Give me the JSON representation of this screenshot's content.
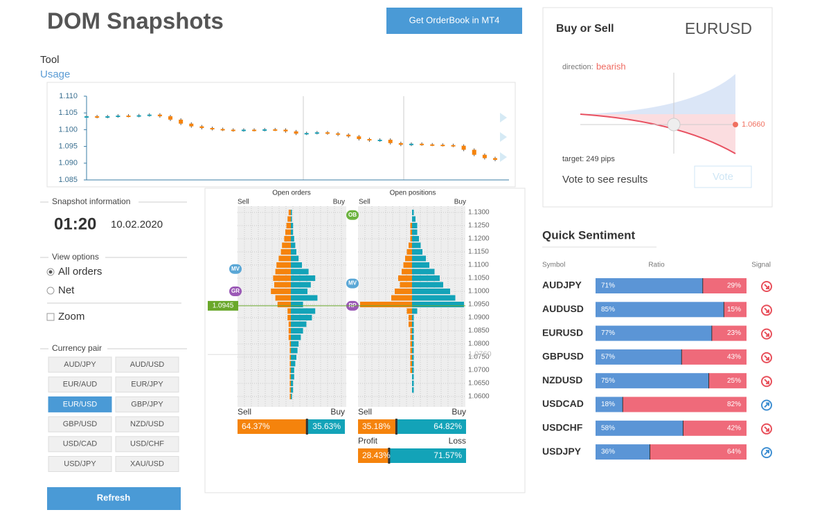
{
  "header": {
    "title": "DOM Snapshots",
    "button": "Get OrderBook in MT4"
  },
  "tool": {
    "label": "Tool",
    "link": "Usage"
  },
  "price_chart": {
    "ylim": [
      1.085,
      1.11
    ],
    "yticks": [
      {
        "value": 1.11,
        "label": "1.110"
      },
      {
        "value": 1.105,
        "label": "1.105"
      },
      {
        "value": 1.1,
        "label": "1.100"
      },
      {
        "value": 1.095,
        "label": "1.095"
      },
      {
        "value": 1.09,
        "label": "1.090"
      },
      {
        "value": 1.085,
        "label": "1.085"
      }
    ],
    "closes": [
      1.104,
      1.1038,
      1.104,
      1.1042,
      1.1041,
      1.1043,
      1.1045,
      1.104,
      1.103,
      1.1018,
      1.101,
      1.1005,
      1.1002,
      1.1,
      1.0998,
      1.1,
      1.0999,
      1.1001,
      1.1,
      1.0995,
      1.0988,
      1.099,
      1.0992,
      1.0989,
      1.0985,
      1.098,
      1.0972,
      1.0968,
      1.097,
      1.096,
      1.0955,
      1.0958,
      1.0956,
      1.0955,
      1.0954,
      1.0952,
      1.094,
      1.0925,
      1.0915,
      1.091
    ],
    "colors": {
      "up": "#1a9fb5",
      "down": "#f5830c"
    }
  },
  "snapshot": {
    "legend": "Snapshot information",
    "time": "01:20",
    "date": "10.02.2020"
  },
  "view_options": {
    "legend": "View options",
    "options": [
      "All orders",
      "Net"
    ],
    "selected": 0,
    "zoom": "Zoom",
    "zoom_checked": false
  },
  "currency_pair": {
    "legend": "Currency pair",
    "pairs": [
      "AUD/JPY",
      "AUD/USD",
      "EUR/AUD",
      "EUR/JPY",
      "EUR/USD",
      "GBP/JPY",
      "GBP/USD",
      "NZD/USD",
      "USD/CAD",
      "USD/CHF",
      "USD/JPY",
      "XAU/USD"
    ],
    "selected": 4
  },
  "refresh": "Refresh",
  "order_book": {
    "orders_title": "Open orders",
    "positions_title": "Open positions",
    "sell": "Sell",
    "buy": "Buy",
    "colors": {
      "sell": "#f5830c",
      "buy": "#13a3b8"
    },
    "levels": [
      1.13,
      1.1275,
      1.125,
      1.1225,
      1.12,
      1.1175,
      1.115,
      1.1125,
      1.11,
      1.1075,
      1.105,
      1.1025,
      1.1,
      1.0975,
      1.095,
      1.0925,
      1.09,
      1.0875,
      1.085,
      1.0825,
      1.08,
      1.0775,
      1.075,
      1.0725,
      1.07,
      1.0675,
      1.065,
      1.0625,
      1.06
    ],
    "price_ticks": [
      {
        "value": 1.13,
        "label": "1.1300"
      },
      {
        "value": 1.125,
        "label": "1.1250"
      },
      {
        "value": 1.12,
        "label": "1.1200"
      },
      {
        "value": 1.115,
        "label": "1.1150"
      },
      {
        "value": 1.11,
        "label": "1.1100"
      },
      {
        "value": 1.105,
        "label": "1.1050"
      },
      {
        "value": 1.1,
        "label": "1.1000"
      },
      {
        "value": 1.095,
        "label": "1.0950"
      },
      {
        "value": 1.09,
        "label": "1.0900"
      },
      {
        "value": 1.085,
        "label": "1.0850"
      },
      {
        "value": 1.08,
        "label": "1.0800"
      },
      {
        "value": 1.075,
        "label": "1.0750"
      },
      {
        "value": 1.07,
        "label": "1.0700"
      },
      {
        "value": 1.065,
        "label": "1.0650"
      },
      {
        "value": 1.06,
        "label": "1.0600"
      }
    ],
    "current_price": {
      "value": 1.0945,
      "label": "1.0945"
    },
    "faded_price": {
      "value": 1.076,
      "label": "1.0760"
    },
    "orders": {
      "sell": [
        0.2,
        0.3,
        0.4,
        0.5,
        0.6,
        0.8,
        0.9,
        1.1,
        1.3,
        1.4,
        1.6,
        1.5,
        1.8,
        1.4,
        1.2,
        0.3,
        0.3,
        0.2,
        0.2,
        0.2,
        0.1,
        0.1,
        0.1,
        0.1,
        0.1,
        0.1,
        0.1,
        0.1,
        0.1
      ],
      "buy": [
        0.1,
        0.1,
        0.2,
        0.2,
        0.3,
        0.4,
        0.5,
        0.7,
        1,
        1.6,
        2.2,
        1.8,
        1.5,
        2.4,
        1.1,
        2.2,
        1.9,
        1.4,
        1.1,
        0.9,
        0.7,
        0.6,
        0.5,
        0.4,
        0.3,
        0.3,
        0.2,
        0.2,
        0.1
      ]
    },
    "positions": {
      "sell": [
        0,
        0,
        0.1,
        0.1,
        0.1,
        0.2,
        0.3,
        0.4,
        0.5,
        0.6,
        0.8,
        0.7,
        1,
        1.2,
        3,
        0.3,
        0.2,
        0.2,
        0.1,
        0.1,
        0.1,
        0.1,
        0.1,
        0.1,
        0.1,
        0,
        0,
        0,
        0
      ],
      "buy": [
        0.1,
        0.2,
        0.3,
        0.3,
        0.4,
        0.5,
        0.6,
        0.8,
        1,
        1.3,
        1.6,
        1.8,
        2.2,
        2.5,
        3,
        0.3,
        0.1,
        0.1,
        0.1,
        0.1,
        0.1,
        0.1,
        0.1,
        0.1,
        0.1,
        0.1,
        0.1,
        0.1,
        0
      ]
    },
    "order_markers": [
      {
        "label": "MV",
        "price": 1.1085,
        "color": "#5aa7d6"
      },
      {
        "label": "GR",
        "price": 1.1,
        "color": "#9b59b6"
      }
    ],
    "position_markers": [
      {
        "label": "OB",
        "price": 1.129,
        "color": "#6cb33f"
      },
      {
        "label": "MV",
        "price": 1.103,
        "color": "#5aa7d6"
      },
      {
        "label": "RP",
        "price": 1.0945,
        "color": "#9b59b6"
      }
    ],
    "summary": [
      {
        "left_label": "Sell",
        "right_label": "Buy",
        "values": [
          64.37,
          35.63
        ],
        "value_labels": [
          "64.37%",
          "35.63%"
        ]
      },
      {
        "left_label": "Sell",
        "right_label": "Buy",
        "values": [
          35.18,
          64.82
        ],
        "value_labels": [
          "35.18%",
          "64.82%"
        ]
      },
      {
        "left_label": "Profit",
        "right_label": "Loss",
        "values": [
          28.43,
          71.57
        ],
        "value_labels": [
          "28.43%",
          "71.57%"
        ]
      }
    ]
  },
  "buy_or_sell": {
    "title": "Buy or Sell",
    "symbol": "EURUSD",
    "direction_label": "direction:",
    "direction": "bearish",
    "target_price": "1.0660",
    "target": "target: 249 pips",
    "results": "Vote to see results",
    "vote": "Vote"
  },
  "sentiment": {
    "title": "Quick Sentiment",
    "headers": [
      "Symbol",
      "Ratio",
      "Signal"
    ],
    "colors": {
      "buy": "#5b95d6",
      "sell": "#ef6a7a",
      "up": "#3f8fd2",
      "down": "#e8505b"
    },
    "rows": [
      {
        "symbol": "AUDJPY",
        "values": [
          71,
          29
        ],
        "value_labels": [
          "71%",
          "29%"
        ],
        "signal": "down"
      },
      {
        "symbol": "AUDUSD",
        "values": [
          85,
          15
        ],
        "value_labels": [
          "85%",
          "15%"
        ],
        "signal": "down"
      },
      {
        "symbol": "EURUSD",
        "values": [
          77,
          23
        ],
        "value_labels": [
          "77%",
          "23%"
        ],
        "signal": "down"
      },
      {
        "symbol": "GBPUSD",
        "values": [
          57,
          43
        ],
        "value_labels": [
          "57%",
          "43%"
        ],
        "signal": "down"
      },
      {
        "symbol": "NZDUSD",
        "values": [
          75,
          25
        ],
        "value_labels": [
          "75%",
          "25%"
        ],
        "signal": "down"
      },
      {
        "symbol": "USDCAD",
        "values": [
          18,
          82
        ],
        "value_labels": [
          "18%",
          "82%"
        ],
        "signal": "up"
      },
      {
        "symbol": "USDCHF",
        "values": [
          58,
          42
        ],
        "value_labels": [
          "58%",
          "42%"
        ],
        "signal": "down"
      },
      {
        "symbol": "USDJPY",
        "values": [
          36,
          64
        ],
        "value_labels": [
          "36%",
          "64%"
        ],
        "signal": "up"
      }
    ]
  }
}
